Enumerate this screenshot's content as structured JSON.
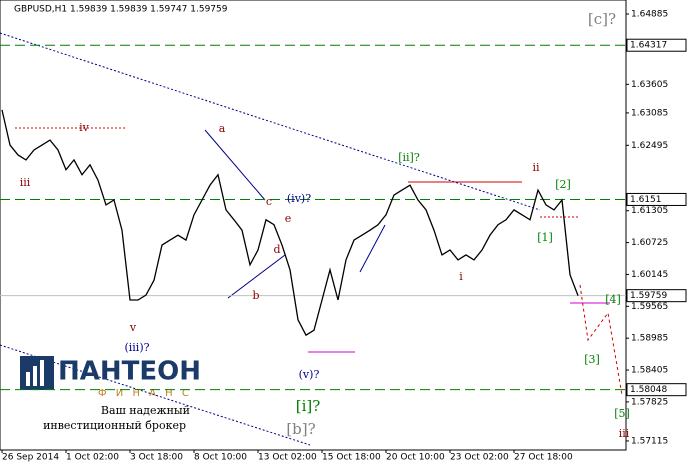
{
  "chart_data": {
    "type": "line",
    "header": "GBPUSD,H1  1.59839 1.59839 1.59747 1.59759",
    "series": [
      {
        "name": "GBPUSD",
        "color": "#000000",
        "values": [
          1.6314,
          1.625,
          1.6232,
          1.6223,
          1.6241,
          1.625,
          1.6259,
          1.6241,
          1.6205,
          1.6223,
          1.6196,
          1.6214,
          1.6186,
          1.6141,
          1.615,
          1.6095,
          1.5968,
          1.5968,
          1.5977,
          1.6004,
          1.6068,
          1.6077,
          1.6086,
          1.6077,
          1.6123,
          1.615,
          1.6177,
          1.6196,
          1.6132,
          1.6114,
          1.6095,
          1.6032,
          1.6059,
          1.6114,
          1.6105,
          1.6068,
          1.6023,
          1.5932,
          1.5904,
          1.5913,
          1.5968,
          1.6023,
          1.5968,
          1.6041,
          1.6077,
          1.6086,
          1.6095,
          1.6105,
          1.6123,
          1.6159,
          1.6168,
          1.6177,
          1.615,
          1.6132,
          1.6095,
          1.605,
          1.6059,
          1.6041,
          1.605,
          1.6041,
          1.6059,
          1.6086,
          1.6105,
          1.6114,
          1.6132,
          1.6123,
          1.6114,
          1.6168,
          1.6141,
          1.6132,
          1.615,
          1.6014,
          1.59759
        ]
      }
    ],
    "xlim": [
      0,
      78
    ],
    "xticks": [
      {
        "value": 0,
        "label": "26 Sep 2014"
      },
      {
        "value": 8,
        "label": "1 Oct 02:00"
      },
      {
        "value": 16,
        "label": "3 Oct 18:00"
      },
      {
        "value": 24,
        "label": "8 Oct 10:00"
      },
      {
        "value": 32,
        "label": "13 Oct 02:00"
      },
      {
        "value": 40,
        "label": "15 Oct 18:00"
      },
      {
        "value": 48,
        "label": "20 Oct 10:00"
      },
      {
        "value": 56,
        "label": "23 Oct 02:00"
      },
      {
        "value": 64,
        "label": "27 Oct 18:00"
      }
    ],
    "ylim": [
      1.5695,
      1.6514
    ],
    "yticks": [
      1.64885,
      1.63605,
      1.63085,
      1.62495,
      1.61305,
      1.60725,
      1.60145,
      1.59565,
      1.58985,
      1.58405,
      1.57825,
      1.57115
    ],
    "levels": [
      {
        "value": 1.64317,
        "color": "#008000"
      },
      {
        "value": 1.6151,
        "color": "#008000"
      },
      {
        "value": 1.58048,
        "color": "#008000"
      }
    ],
    "price_line": {
      "value": 1.59759,
      "color": "#c0c0c0"
    },
    "wave_labels": [
      "iii",
      "iv",
      "v",
      "(iii)?",
      "a",
      "b",
      "c",
      "d",
      "e",
      "(iv)?",
      "(v)?",
      "[i]?",
      "[b]?",
      "[ii]?",
      "i",
      "ii",
      "[1]",
      "[2]",
      "[3]",
      "[4]",
      "[5]",
      "iii",
      "[c]?"
    ],
    "logo": {
      "name": "ПАНТЕОН",
      "sub": "Ф И Н А Н С",
      "tagline1": "Ваш надежный",
      "tagline2": "инвестиционный брокер"
    }
  }
}
